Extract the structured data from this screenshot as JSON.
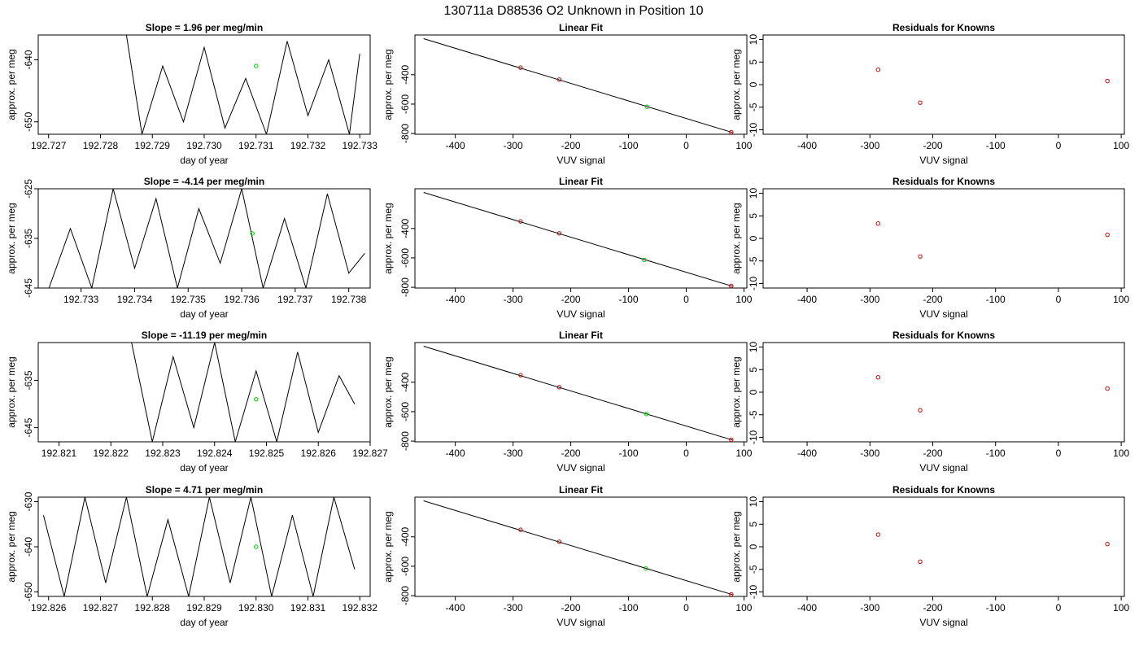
{
  "figure": {
    "title": "130711a      D88536    O2 Unknown in Position  10",
    "colors": {
      "line": "#000000",
      "known_point": "#cc0000",
      "unknown_point": "#00cc00",
      "axis": "#000000"
    }
  },
  "chart_data": [
    {
      "type": "line",
      "title": "Slope =  1.96  per meg/min",
      "xlabel": "day of year",
      "ylabel": "approx. per meg",
      "xlim": [
        192.7268,
        192.7332
      ],
      "ylim": [
        -652,
        -636
      ],
      "xticks": [
        "192.727",
        "192.728",
        "192.729",
        "192.730",
        "192.731",
        "192.732",
        "192.733"
      ],
      "yticks": [
        "-640",
        "-650"
      ],
      "series": [
        {
          "x": [
            192.7285,
            192.7288,
            192.7292,
            192.7296,
            192.73,
            192.7304,
            192.7308,
            192.7312,
            192.7316,
            192.732,
            192.7324,
            192.7328,
            192.733
          ],
          "y": [
            -636,
            -652,
            -641,
            -650,
            -638,
            -651,
            -643,
            -652,
            -637,
            -649,
            -640,
            -652,
            -639
          ]
        }
      ],
      "points": [
        {
          "x": 192.731,
          "y": -641,
          "kind": "unknown"
        }
      ]
    },
    {
      "type": "scatter",
      "title": "Linear Fit",
      "xlabel": "VUV signal",
      "ylabel": "approx. per meg",
      "xlim": [
        -470,
        105
      ],
      "ylim": [
        -805,
        -130
      ],
      "xticks": [
        -400,
        -300,
        -200,
        -100,
        0,
        100
      ],
      "yticks": [
        -400,
        -600,
        -800
      ],
      "line": {
        "x": [
          -455,
          80
        ],
        "y": [
          -155,
          -793
        ]
      },
      "points": [
        {
          "x": -287,
          "y": -352,
          "kind": "known"
        },
        {
          "x": -220,
          "y": -433,
          "kind": "known"
        },
        {
          "x": 78,
          "y": -791,
          "kind": "known"
        },
        {
          "x": -68,
          "y": -618,
          "kind": "unknown"
        }
      ]
    },
    {
      "type": "scatter",
      "title": "Residuals for Knowns",
      "xlabel": "VUV signal",
      "ylabel": "approx. per meg",
      "xlim": [
        -470,
        105
      ],
      "ylim": [
        -11,
        11
      ],
      "xticks": [
        -400,
        -300,
        -200,
        -100,
        0,
        100
      ],
      "yticks": [
        10,
        5,
        0,
        -5,
        -10
      ],
      "points": [
        {
          "x": -287,
          "y": 3.3,
          "kind": "known"
        },
        {
          "x": -220,
          "y": -4.0,
          "kind": "known"
        },
        {
          "x": 78,
          "y": 0.8,
          "kind": "known"
        }
      ]
    },
    {
      "type": "line",
      "title": "Slope =  -4.14  per meg/min",
      "xlabel": "day of year",
      "ylabel": "approx. per meg",
      "xlim": [
        192.7322,
        192.7384
      ],
      "ylim": [
        -645,
        -625
      ],
      "xticks": [
        "192.733",
        "192.734",
        "192.735",
        "192.736",
        "192.737",
        "192.738"
      ],
      "yticks": [
        "-625",
        "-635",
        "-645"
      ],
      "series": [
        {
          "x": [
            192.7324,
            192.7328,
            192.7332,
            192.7336,
            192.734,
            192.7344,
            192.7348,
            192.7352,
            192.7356,
            192.736,
            192.7364,
            192.7368,
            192.7372,
            192.7376,
            192.738,
            192.7383
          ],
          "y": [
            -645,
            -633,
            -645,
            -625,
            -641,
            -627,
            -645,
            -629,
            -640,
            -625,
            -645,
            -631,
            -645,
            -626,
            -642,
            -638
          ]
        }
      ],
      "points": [
        {
          "x": 192.7362,
          "y": -634,
          "kind": "unknown"
        }
      ]
    },
    {
      "type": "scatter",
      "title": "Linear Fit",
      "xlabel": "VUV signal",
      "ylabel": "approx. per meg",
      "xlim": [
        -470,
        105
      ],
      "ylim": [
        -805,
        -130
      ],
      "xticks": [
        -400,
        -300,
        -200,
        -100,
        0,
        100
      ],
      "yticks": [
        -400,
        -600,
        -800
      ],
      "line": {
        "x": [
          -455,
          80
        ],
        "y": [
          -155,
          -793
        ]
      },
      "points": [
        {
          "x": -287,
          "y": -352,
          "kind": "known"
        },
        {
          "x": -220,
          "y": -433,
          "kind": "known"
        },
        {
          "x": 78,
          "y": -791,
          "kind": "known"
        },
        {
          "x": -73,
          "y": -613,
          "kind": "unknown"
        }
      ]
    },
    {
      "type": "scatter",
      "title": "Residuals for Knowns",
      "xlabel": "VUV signal",
      "ylabel": "approx. per meg",
      "xlim": [
        -470,
        105
      ],
      "ylim": [
        -11,
        11
      ],
      "xticks": [
        -400,
        -300,
        -200,
        -100,
        0,
        100
      ],
      "yticks": [
        10,
        5,
        0,
        -5,
        -10
      ],
      "points": [
        {
          "x": -287,
          "y": 3.3,
          "kind": "known"
        },
        {
          "x": -220,
          "y": -4.0,
          "kind": "known"
        },
        {
          "x": 78,
          "y": 0.8,
          "kind": "known"
        }
      ]
    },
    {
      "type": "line",
      "title": "Slope =  -11.19  per meg/min",
      "xlabel": "day of year",
      "ylabel": "approx. per meg",
      "xlim": [
        192.8206,
        192.827
      ],
      "ylim": [
        -648,
        -627
      ],
      "xticks": [
        "192.821",
        "192.822",
        "192.823",
        "192.824",
        "192.825",
        "192.826",
        "192.827"
      ],
      "yticks": [
        "-635",
        "-645"
      ],
      "series": [
        {
          "x": [
            192.8224,
            192.8228,
            192.8232,
            192.8236,
            192.824,
            192.8244,
            192.8248,
            192.8252,
            192.8256,
            192.826,
            192.8264,
            192.8267
          ],
          "y": [
            -627,
            -648,
            -630,
            -645,
            -627,
            -648,
            -633,
            -648,
            -629,
            -646,
            -634,
            -640
          ]
        }
      ],
      "points": [
        {
          "x": 192.8248,
          "y": -639,
          "kind": "unknown"
        }
      ]
    },
    {
      "type": "scatter",
      "title": "Linear Fit",
      "xlabel": "VUV signal",
      "ylabel": "approx. per meg",
      "xlim": [
        -470,
        105
      ],
      "ylim": [
        -805,
        -130
      ],
      "xticks": [
        -400,
        -300,
        -200,
        -100,
        0,
        100
      ],
      "yticks": [
        -400,
        -600,
        -800
      ],
      "line": {
        "x": [
          -455,
          80
        ],
        "y": [
          -155,
          -793
        ]
      },
      "points": [
        {
          "x": -287,
          "y": -352,
          "kind": "known"
        },
        {
          "x": -220,
          "y": -433,
          "kind": "known"
        },
        {
          "x": 78,
          "y": -791,
          "kind": "known"
        },
        {
          "x": -69,
          "y": -616,
          "kind": "unknown"
        }
      ]
    },
    {
      "type": "scatter",
      "title": "Residuals for Knowns",
      "xlabel": "VUV signal",
      "ylabel": "approx. per meg",
      "xlim": [
        -470,
        105
      ],
      "ylim": [
        -11,
        11
      ],
      "xticks": [
        -400,
        -300,
        -200,
        -100,
        0,
        100
      ],
      "yticks": [
        10,
        5,
        0,
        -5,
        -10
      ],
      "points": [
        {
          "x": -287,
          "y": 3.3,
          "kind": "known"
        },
        {
          "x": -220,
          "y": -4.0,
          "kind": "known"
        },
        {
          "x": 78,
          "y": 0.8,
          "kind": "known"
        }
      ]
    },
    {
      "type": "line",
      "title": "Slope =  4.71  per meg/min",
      "xlabel": "day of year",
      "ylabel": "approx. per meg",
      "xlim": [
        192.8258,
        192.8322
      ],
      "ylim": [
        -651,
        -629
      ],
      "xticks": [
        "192.826",
        "192.827",
        "192.828",
        "192.829",
        "192.830",
        "192.831",
        "192.832"
      ],
      "yticks": [
        "-630",
        "-640",
        "-650"
      ],
      "series": [
        {
          "x": [
            192.8259,
            192.8263,
            192.8267,
            192.8271,
            192.8275,
            192.8279,
            192.8283,
            192.8287,
            192.8291,
            192.8295,
            192.8299,
            192.8303,
            192.8307,
            192.8311,
            192.8315,
            192.8319
          ],
          "y": [
            -633,
            -651,
            -629,
            -648,
            -629,
            -651,
            -634,
            -651,
            -629,
            -648,
            -629,
            -651,
            -633,
            -651,
            -629,
            -645
          ]
        }
      ],
      "points": [
        {
          "x": 192.83,
          "y": -640,
          "kind": "unknown"
        }
      ]
    },
    {
      "type": "scatter",
      "title": "Linear Fit",
      "xlabel": "VUV signal",
      "ylabel": "approx. per meg",
      "xlim": [
        -470,
        105
      ],
      "ylim": [
        -805,
        -130
      ],
      "xticks": [
        -400,
        -300,
        -200,
        -100,
        0,
        100
      ],
      "yticks": [
        -400,
        -600,
        -800
      ],
      "line": {
        "x": [
          -455,
          80
        ],
        "y": [
          -155,
          -793
        ]
      },
      "points": [
        {
          "x": -287,
          "y": -352,
          "kind": "known"
        },
        {
          "x": -220,
          "y": -433,
          "kind": "known"
        },
        {
          "x": 78,
          "y": -791,
          "kind": "known"
        },
        {
          "x": -70,
          "y": -615,
          "kind": "unknown"
        }
      ]
    },
    {
      "type": "scatter",
      "title": "Residuals for Knowns",
      "xlabel": "VUV signal",
      "ylabel": "approx. per meg",
      "xlim": [
        -470,
        105
      ],
      "ylim": [
        -11,
        11
      ],
      "xticks": [
        -400,
        -300,
        -200,
        -100,
        0,
        100
      ],
      "yticks": [
        10,
        5,
        0,
        -5,
        -10
      ],
      "points": [
        {
          "x": -287,
          "y": 2.7,
          "kind": "known"
        },
        {
          "x": -220,
          "y": -3.3,
          "kind": "known"
        },
        {
          "x": 78,
          "y": 0.6,
          "kind": "known"
        }
      ]
    }
  ]
}
